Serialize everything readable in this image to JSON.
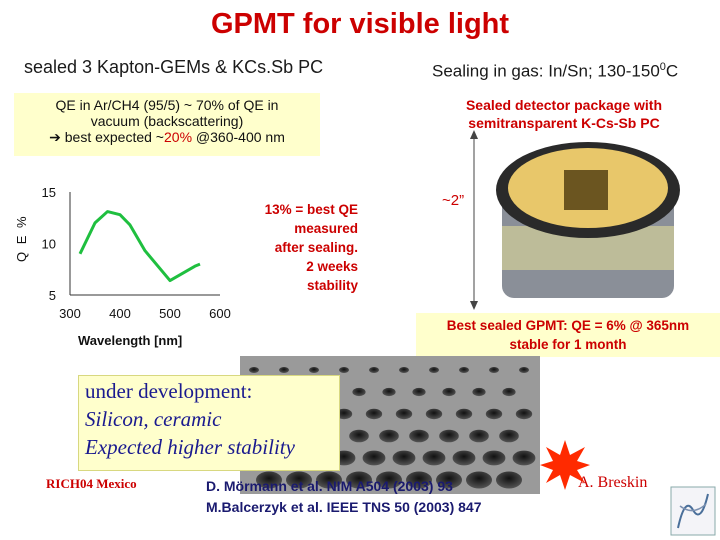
{
  "title": "GPMT for visible light",
  "subtitle_left": "sealed 3 Kapton-GEMs & KCs.Sb PC",
  "subtitle_right": {
    "text": "Sealing in gas: In/Sn; 130-150",
    "sup": "0",
    "unit": "C"
  },
  "qe_note": {
    "line1": "QE in Ar/CH4 (95/5) ~ 70% of QE in",
    "line2": "vacuum (backscattering)",
    "line3_prefix": "best expected ~",
    "line3_highlight": "20%",
    "line3_suffix": " @360-400 nm"
  },
  "package_note": {
    "line1": "Sealed detector package with",
    "line2": "semitransparent K-Cs-Sb PC"
  },
  "sealing_note": [
    "13% = best QE",
    "measured",
    "after sealing.",
    "2 weeks",
    "stability"
  ],
  "size_label": "~2”",
  "best_gpmt": {
    "line1": "Best sealed GPMT: QE = 6% @ 365nm",
    "line2": "stable for 1 month"
  },
  "development": {
    "line1": "under development:",
    "line2": "Silicon, ceramic",
    "line3": "Expected higher stability"
  },
  "footer": {
    "conference": "RICH04 Mexico",
    "ref1": "D. Mörmann et al. NIM A504 (2003) 93",
    "ref2": "M.Balcerzyk et al. IEEE TNS 50 (2003) 847",
    "author": "A. Breskin"
  },
  "chart_data": {
    "type": "line",
    "xlabel": "Wavelength [nm]",
    "ylabel": "Q E %",
    "xlim": [
      300,
      600
    ],
    "ylim": [
      5,
      15
    ],
    "x_ticks": [
      "300",
      "400",
      "500",
      "600"
    ],
    "y_ticks": [
      "15",
      "10",
      "5"
    ],
    "series": [
      {
        "x": [
          320,
          350,
          375,
          400,
          420,
          450,
          500,
          550,
          560
        ],
        "y": [
          9.0,
          12.0,
          13.1,
          12.8,
          11.8,
          9.3,
          6.4,
          7.8,
          8.0
        ]
      }
    ],
    "color": "#1fbf3f"
  },
  "colors": {
    "title": "#cc0000",
    "note_bg": "#ffffcc",
    "curve": "#1fbf3f"
  }
}
